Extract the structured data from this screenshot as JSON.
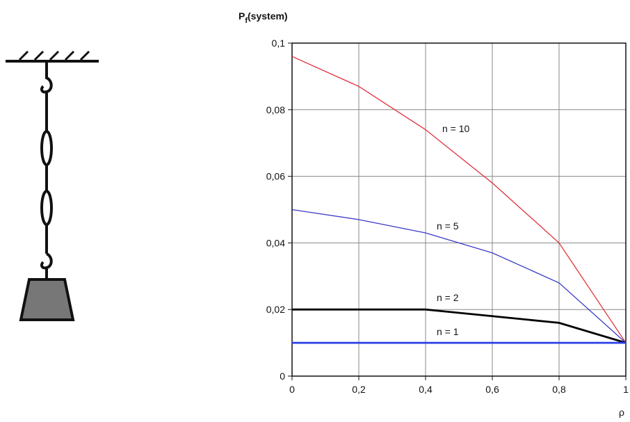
{
  "chart_data": {
    "type": "line",
    "ylabel_parts": [
      "P",
      "f",
      "(system)"
    ],
    "xlabel": "ρ",
    "x": [
      0,
      0.2,
      0.4,
      0.6,
      0.8,
      1
    ],
    "xlim": [
      0,
      1
    ],
    "xticks": [
      0,
      {
        "value": 0.2,
        "label": "0,2"
      },
      {
        "value": 0.4,
        "label": "0,4"
      },
      {
        "value": 0.6,
        "label": "0,6"
      },
      {
        "value": 0.8,
        "label": "0,8"
      },
      1
    ],
    "ylim": [
      0,
      0.1
    ],
    "yticks": [
      0,
      {
        "value": 0.02,
        "label": "0,02"
      },
      {
        "value": 0.04,
        "label": "0,04"
      },
      {
        "value": 0.06,
        "label": "0,06"
      },
      {
        "value": 0.08,
        "label": "0,08"
      },
      {
        "value": 0.1,
        "label": "0,1"
      }
    ],
    "grid": true,
    "series": [
      {
        "name": "n = 10",
        "color": "#e0303a",
        "values": [
          0.096,
          0.087,
          0.074,
          0.058,
          0.04,
          0.01
        ]
      },
      {
        "name": "n = 5",
        "color": "#3a3ac8",
        "values": [
          0.05,
          0.047,
          0.043,
          0.037,
          0.028,
          0.01
        ]
      },
      {
        "name": "n = 2",
        "color": "#000000",
        "values": [
          0.02,
          0.02,
          0.02,
          0.018,
          0.016,
          0.01
        ]
      },
      {
        "name": "n = 1",
        "color": "#2a40e8",
        "values": [
          0.01,
          0.01,
          0.01,
          0.01,
          0.01,
          0.01
        ]
      }
    ]
  }
}
